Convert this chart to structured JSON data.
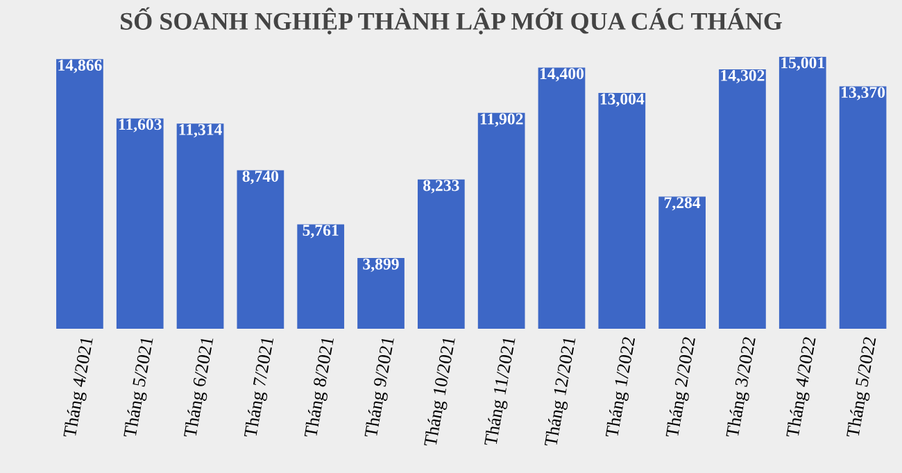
{
  "chart_data": {
    "type": "bar",
    "title": "SỐ SOANH NGHIỆP THÀNH LẬP MỚI QUA CÁC THÁNG",
    "categories": [
      "Tháng 4/2021",
      "Tháng 5/2021",
      "Tháng 6/2021",
      "Tháng 7/2021",
      "Tháng 8/2021",
      "Tháng 9/2021",
      "Tháng 10/2021",
      "Tháng 11/2021",
      "Tháng 12/2021",
      "Tháng 1/2022",
      "Tháng 2/2022",
      "Tháng 3/2022",
      "Tháng 4/2022",
      "Tháng 5/2022"
    ],
    "values": [
      14866,
      11603,
      11314,
      8740,
      5761,
      3899,
      8233,
      11902,
      14400,
      13004,
      7284,
      14302,
      15001,
      13370
    ],
    "value_labels": [
      "14,866",
      "11,603",
      "11,314",
      "8,740",
      "5,761",
      "3,899",
      "8,233",
      "11,902",
      "14,400",
      "13,004",
      "7,284",
      "14,302",
      "15,001",
      "13,370"
    ],
    "color": "#3d67c6",
    "grid": false,
    "legend": false
  }
}
